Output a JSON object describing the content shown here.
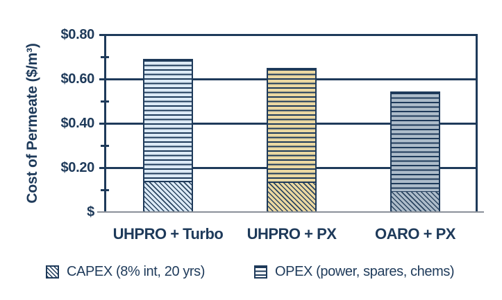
{
  "chart_data": {
    "type": "bar",
    "stacked": true,
    "ylabel": "Cost of Permeate ($/m³)",
    "xlabel": "",
    "categories": [
      "UHPRO + Turbo",
      "UHPRO + PX",
      "OARO + PX"
    ],
    "series": [
      {
        "name": "CAPEX (8% int, 20 yrs)",
        "pattern": "diagonal-hatch",
        "values": [
          0.135,
          0.13,
          0.09
        ]
      },
      {
        "name": "OPEX (power, spares, chems)",
        "pattern": "horizontal-lines",
        "values": [
          0.555,
          0.52,
          0.455
        ]
      }
    ],
    "totals": [
      0.69,
      0.65,
      0.545
    ],
    "bar_colors": [
      "#dceaf6",
      "#ebd8a1",
      "#adbcca"
    ],
    "ylim": [
      0,
      0.8
    ],
    "yticks": [
      {
        "value": 0.0,
        "label": "$"
      },
      {
        "value": 0.2,
        "label": "$0.20"
      },
      {
        "value": 0.4,
        "label": "$0.40"
      },
      {
        "value": 0.6,
        "label": "$0.60"
      },
      {
        "value": 0.8,
        "label": "$0.80"
      }
    ],
    "yticks_minor": [
      0.1,
      0.3,
      0.5,
      0.7
    ],
    "grid": true,
    "legend_position": "bottom",
    "colors": {
      "line_and_text": "#1e3a5a",
      "baseline": "#8a9099",
      "bar_uhpro_turbo": "#dceaf6",
      "bar_uhpro_px": "#ebd8a1",
      "bar_oaro_px": "#adbcca"
    }
  }
}
